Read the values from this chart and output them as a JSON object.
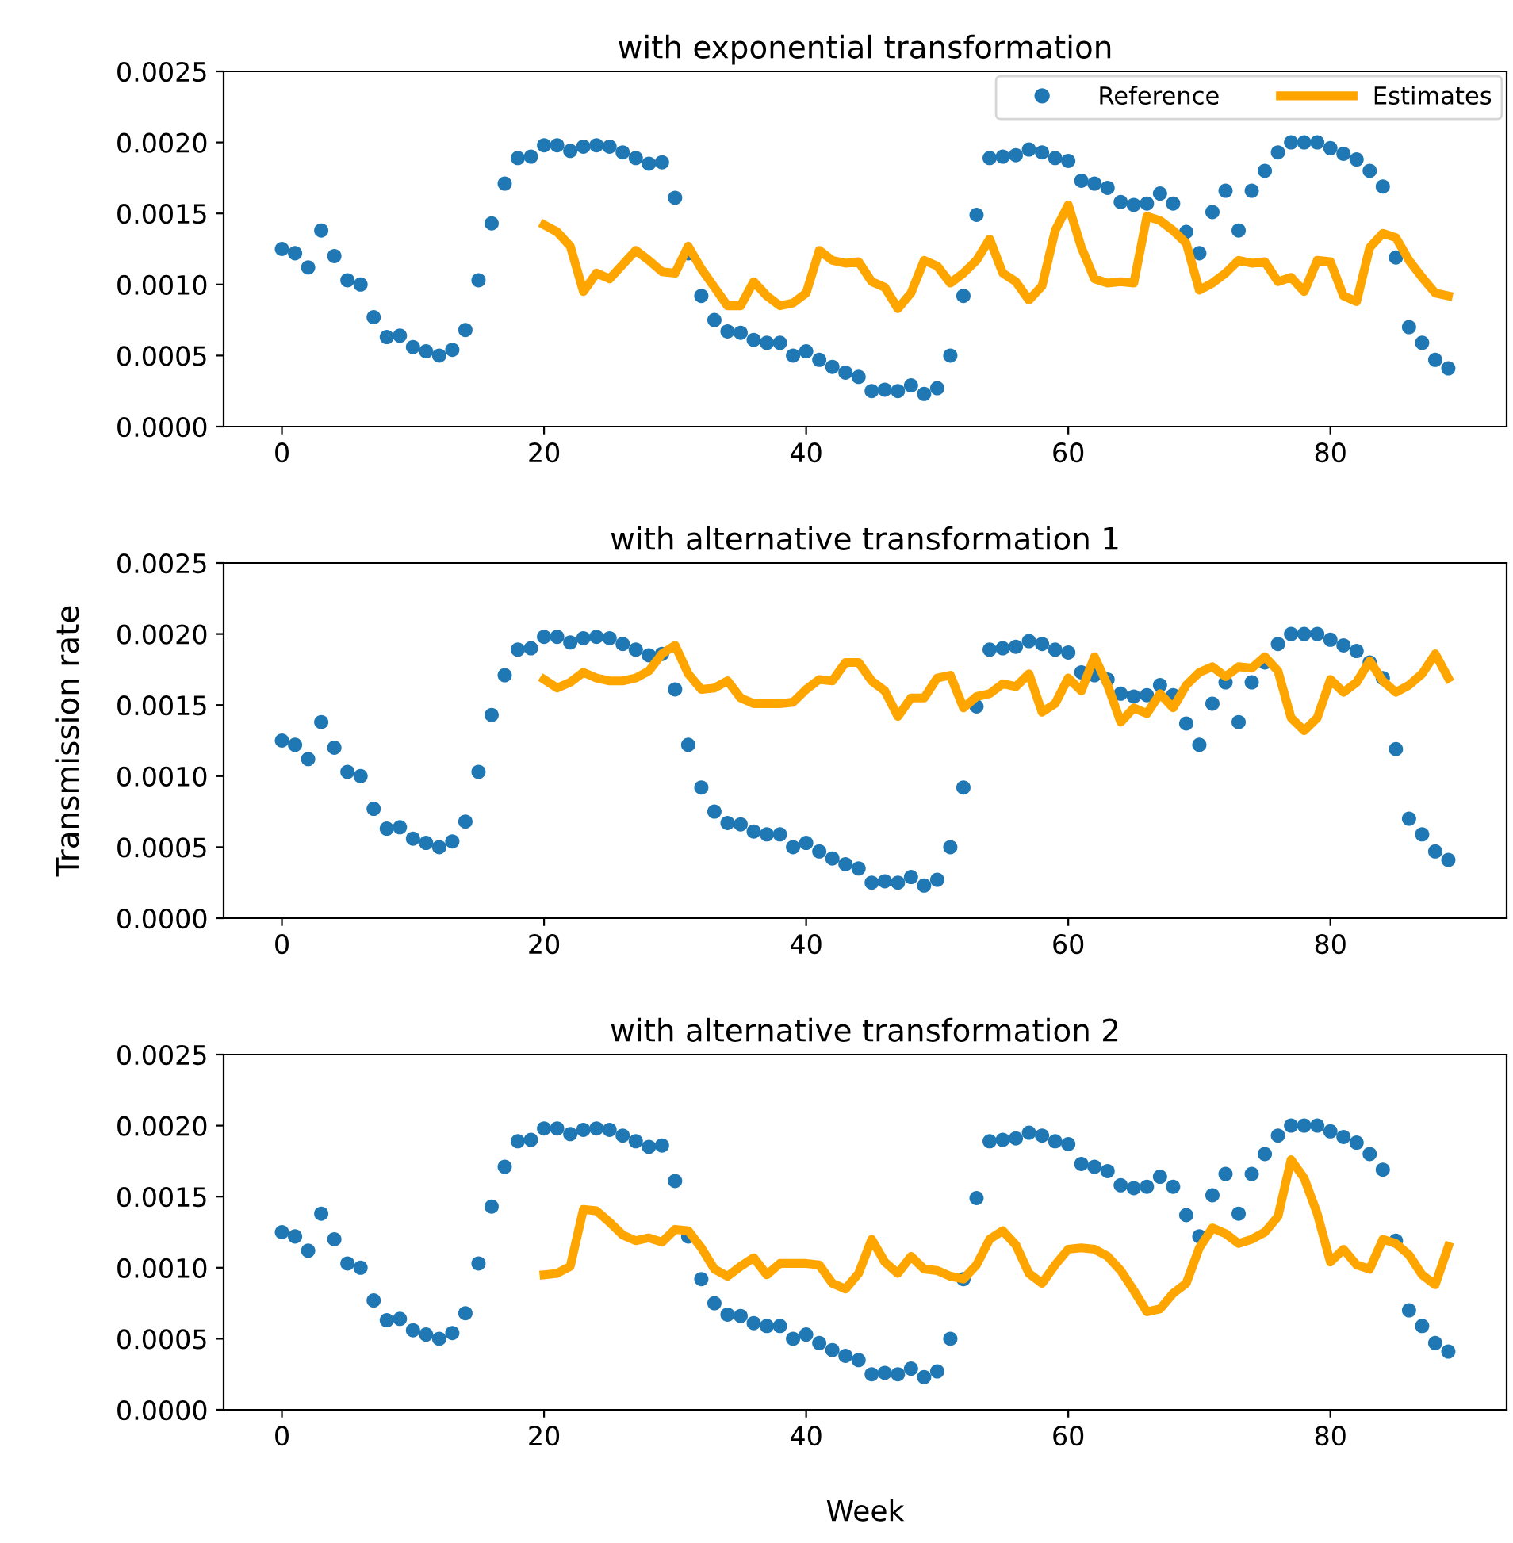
{
  "chart_data": [
    {
      "type": "scatter",
      "title": "with exponential transformation",
      "legend": "top right",
      "xlim": [
        -4.45,
        93.45
      ],
      "xticks": [
        0,
        20,
        40,
        60,
        80
      ],
      "ylim": [
        0,
        0.0025
      ],
      "yticks": [
        {
          "value": 0,
          "label": "0.0000"
        },
        {
          "value": 0.0005,
          "label": "0.0005"
        },
        {
          "value": 0.001,
          "label": "0.0010"
        },
        {
          "value": 0.0015,
          "label": "0.0015"
        },
        {
          "value": 0.002,
          "label": "0.0020"
        },
        {
          "value": 0.0025,
          "label": "0.0025"
        }
      ],
      "series": [
        {
          "name": "Reference",
          "marker": "circle",
          "color": "#1f77b4",
          "x": [
            0,
            1,
            2,
            3,
            4,
            5,
            6,
            7,
            8,
            9,
            10,
            11,
            12,
            13,
            14,
            15,
            16,
            17,
            18,
            19,
            20,
            21,
            22,
            23,
            24,
            25,
            26,
            27,
            28,
            29,
            30,
            31,
            32,
            33,
            34,
            35,
            36,
            37,
            38,
            39,
            40,
            41,
            42,
            43,
            44,
            45,
            46,
            47,
            48,
            49,
            50,
            51,
            52,
            53,
            54,
            55,
            56,
            57,
            58,
            59,
            60,
            61,
            62,
            63,
            64,
            65,
            66,
            67,
            68,
            69,
            70,
            71,
            72,
            73,
            74,
            75,
            76,
            77,
            78,
            79,
            80,
            81,
            82,
            83,
            84,
            85,
            86,
            87,
            88,
            89
          ],
          "values": [
            0.00125,
            0.00122,
            0.00112,
            0.00138,
            0.0012,
            0.00103,
            0.001,
            0.00077,
            0.00063,
            0.00064,
            0.00056,
            0.00053,
            0.0005,
            0.00054,
            0.00068,
            0.00103,
            0.00143,
            0.00171,
            0.00189,
            0.0019,
            0.00198,
            0.00198,
            0.00194,
            0.00197,
            0.00198,
            0.00197,
            0.00193,
            0.00189,
            0.00185,
            0.00186,
            0.00161,
            0.00122,
            0.00092,
            0.00075,
            0.00067,
            0.00066,
            0.00061,
            0.00059,
            0.00059,
            0.0005,
            0.00053,
            0.00047,
            0.00042,
            0.00038,
            0.00035,
            0.00025,
            0.00026,
            0.00025,
            0.00029,
            0.00023,
            0.00027,
            0.0005,
            0.00092,
            0.00149,
            0.00189,
            0.0019,
            0.00191,
            0.00195,
            0.00193,
            0.00189,
            0.00187,
            0.00173,
            0.00171,
            0.00168,
            0.00158,
            0.00156,
            0.00157,
            0.00164,
            0.00157,
            0.00137,
            0.00122,
            0.00151,
            0.00166,
            0.00138,
            0.00166,
            0.0018,
            0.00193,
            0.002,
            0.002,
            0.002,
            0.00196,
            0.00192,
            0.00188,
            0.0018,
            0.00169,
            0.00119,
            0.0007,
            0.00059,
            0.00047,
            0.00041
          ]
        },
        {
          "name": "Estimates",
          "type": "line",
          "color": "#ffa500",
          "x": [
            20,
            21,
            22,
            23,
            24,
            25,
            26,
            27,
            28,
            29,
            30,
            31,
            32,
            33,
            34,
            35,
            36,
            37,
            38,
            39,
            40,
            41,
            42,
            43,
            44,
            45,
            46,
            47,
            48,
            49,
            50,
            51,
            52,
            53,
            54,
            55,
            56,
            57,
            58,
            59,
            60,
            61,
            62,
            63,
            64,
            65,
            66,
            67,
            68,
            69,
            70,
            71,
            72,
            73,
            74,
            75,
            76,
            77,
            78,
            79,
            80,
            81,
            82,
            83,
            84,
            85,
            86,
            87,
            88,
            89
          ],
          "values": [
            0.00142,
            0.00137,
            0.00127,
            0.00095,
            0.00108,
            0.00104,
            0.00114,
            0.00124,
            0.00117,
            0.00109,
            0.00108,
            0.00127,
            0.00111,
            0.00098,
            0.00085,
            0.00085,
            0.00102,
            0.00092,
            0.00085,
            0.00087,
            0.00094,
            0.00124,
            0.00117,
            0.00115,
            0.00116,
            0.00102,
            0.00098,
            0.00083,
            0.00094,
            0.00117,
            0.00113,
            0.00101,
            0.00108,
            0.00117,
            0.00132,
            0.00108,
            0.00102,
            0.00089,
            0.00099,
            0.00138,
            0.00156,
            0.00126,
            0.00104,
            0.00101,
            0.00102,
            0.00101,
            0.00148,
            0.00145,
            0.00138,
            0.00129,
            0.00096,
            0.00101,
            0.00108,
            0.00117,
            0.00115,
            0.00116,
            0.00102,
            0.00105,
            0.00095,
            0.00117,
            0.00116,
            0.00092,
            0.00088,
            0.00126,
            0.00136,
            0.00133,
            0.00117,
            0.00105,
            0.00094,
            0.00092
          ]
        }
      ]
    },
    {
      "type": "scatter",
      "title": "with alternative transformation 1",
      "ylabel": "Transmission rate",
      "xlim": [
        -4.45,
        93.45
      ],
      "xticks": [
        0,
        20,
        40,
        60,
        80
      ],
      "ylim": [
        0,
        0.0025
      ],
      "yticks": [
        {
          "value": 0,
          "label": "0.0000"
        },
        {
          "value": 0.0005,
          "label": "0.0005"
        },
        {
          "value": 0.001,
          "label": "0.0010"
        },
        {
          "value": 0.0015,
          "label": "0.0015"
        },
        {
          "value": 0.002,
          "label": "0.0020"
        },
        {
          "value": 0.0025,
          "label": "0.0025"
        }
      ],
      "series": [
        {
          "marker": "circle",
          "color": "#1f77b4",
          "x": [
            0,
            1,
            2,
            3,
            4,
            5,
            6,
            7,
            8,
            9,
            10,
            11,
            12,
            13,
            14,
            15,
            16,
            17,
            18,
            19,
            20,
            21,
            22,
            23,
            24,
            25,
            26,
            27,
            28,
            29,
            30,
            31,
            32,
            33,
            34,
            35,
            36,
            37,
            38,
            39,
            40,
            41,
            42,
            43,
            44,
            45,
            46,
            47,
            48,
            49,
            50,
            51,
            52,
            53,
            54,
            55,
            56,
            57,
            58,
            59,
            60,
            61,
            62,
            63,
            64,
            65,
            66,
            67,
            68,
            69,
            70,
            71,
            72,
            73,
            74,
            75,
            76,
            77,
            78,
            79,
            80,
            81,
            82,
            83,
            84,
            85,
            86,
            87,
            88,
            89
          ],
          "values": [
            0.00125,
            0.00122,
            0.00112,
            0.00138,
            0.0012,
            0.00103,
            0.001,
            0.00077,
            0.00063,
            0.00064,
            0.00056,
            0.00053,
            0.0005,
            0.00054,
            0.00068,
            0.00103,
            0.00143,
            0.00171,
            0.00189,
            0.0019,
            0.00198,
            0.00198,
            0.00194,
            0.00197,
            0.00198,
            0.00197,
            0.00193,
            0.00189,
            0.00185,
            0.00186,
            0.00161,
            0.00122,
            0.00092,
            0.00075,
            0.00067,
            0.00066,
            0.00061,
            0.00059,
            0.00059,
            0.0005,
            0.00053,
            0.00047,
            0.00042,
            0.00038,
            0.00035,
            0.00025,
            0.00026,
            0.00025,
            0.00029,
            0.00023,
            0.00027,
            0.0005,
            0.00092,
            0.00149,
            0.00189,
            0.0019,
            0.00191,
            0.00195,
            0.00193,
            0.00189,
            0.00187,
            0.00173,
            0.00171,
            0.00168,
            0.00158,
            0.00156,
            0.00157,
            0.00164,
            0.00157,
            0.00137,
            0.00122,
            0.00151,
            0.00166,
            0.00138,
            0.00166,
            0.0018,
            0.00193,
            0.002,
            0.002,
            0.002,
            0.00196,
            0.00192,
            0.00188,
            0.0018,
            0.00169,
            0.00119,
            0.0007,
            0.00059,
            0.00047,
            0.00041
          ]
        },
        {
          "type": "line",
          "color": "#ffa500",
          "x": [
            20,
            21,
            22,
            23,
            24,
            25,
            26,
            27,
            28,
            29,
            30,
            31,
            32,
            33,
            34,
            35,
            36,
            37,
            38,
            39,
            40,
            41,
            42,
            43,
            44,
            45,
            46,
            47,
            48,
            49,
            50,
            51,
            52,
            53,
            54,
            55,
            56,
            57,
            58,
            59,
            60,
            61,
            62,
            63,
            64,
            65,
            66,
            67,
            68,
            69,
            70,
            71,
            72,
            73,
            74,
            75,
            76,
            77,
            78,
            79,
            80,
            81,
            82,
            83,
            84,
            85,
            86,
            87,
            88,
            89
          ],
          "values": [
            0.00168,
            0.00162,
            0.00166,
            0.00173,
            0.00169,
            0.00167,
            0.00167,
            0.00169,
            0.00174,
            0.00186,
            0.00192,
            0.00172,
            0.00161,
            0.00162,
            0.00167,
            0.00155,
            0.00151,
            0.00151,
            0.00151,
            0.00152,
            0.00161,
            0.00168,
            0.00167,
            0.0018,
            0.0018,
            0.00167,
            0.0016,
            0.00142,
            0.00155,
            0.00155,
            0.00169,
            0.00171,
            0.00148,
            0.00156,
            0.00158,
            0.00165,
            0.00163,
            0.00172,
            0.00145,
            0.00151,
            0.00169,
            0.0016,
            0.00184,
            0.00164,
            0.00138,
            0.00148,
            0.00144,
            0.00158,
            0.00148,
            0.00164,
            0.00173,
            0.00177,
            0.0017,
            0.00177,
            0.00176,
            0.00184,
            0.00174,
            0.00141,
            0.00132,
            0.00141,
            0.00168,
            0.00159,
            0.00166,
            0.00181,
            0.00167,
            0.00159,
            0.00164,
            0.00172,
            0.00186,
            0.00169
          ]
        }
      ]
    },
    {
      "type": "scatter",
      "title": "with alternative transformation 2",
      "xlabel": "Week",
      "xlim": [
        -4.45,
        93.45
      ],
      "xticks": [
        0,
        20,
        40,
        60,
        80
      ],
      "ylim": [
        0,
        0.0025
      ],
      "yticks": [
        {
          "value": 0,
          "label": "0.0000"
        },
        {
          "value": 0.0005,
          "label": "0.0005"
        },
        {
          "value": 0.001,
          "label": "0.0010"
        },
        {
          "value": 0.0015,
          "label": "0.0015"
        },
        {
          "value": 0.002,
          "label": "0.0020"
        },
        {
          "value": 0.0025,
          "label": "0.0025"
        }
      ],
      "series": [
        {
          "marker": "circle",
          "color": "#1f77b4",
          "x": [
            0,
            1,
            2,
            3,
            4,
            5,
            6,
            7,
            8,
            9,
            10,
            11,
            12,
            13,
            14,
            15,
            16,
            17,
            18,
            19,
            20,
            21,
            22,
            23,
            24,
            25,
            26,
            27,
            28,
            29,
            30,
            31,
            32,
            33,
            34,
            35,
            36,
            37,
            38,
            39,
            40,
            41,
            42,
            43,
            44,
            45,
            46,
            47,
            48,
            49,
            50,
            51,
            52,
            53,
            54,
            55,
            56,
            57,
            58,
            59,
            60,
            61,
            62,
            63,
            64,
            65,
            66,
            67,
            68,
            69,
            70,
            71,
            72,
            73,
            74,
            75,
            76,
            77,
            78,
            79,
            80,
            81,
            82,
            83,
            84,
            85,
            86,
            87,
            88,
            89
          ],
          "values": [
            0.00125,
            0.00122,
            0.00112,
            0.00138,
            0.0012,
            0.00103,
            0.001,
            0.00077,
            0.00063,
            0.00064,
            0.00056,
            0.00053,
            0.0005,
            0.00054,
            0.00068,
            0.00103,
            0.00143,
            0.00171,
            0.00189,
            0.0019,
            0.00198,
            0.00198,
            0.00194,
            0.00197,
            0.00198,
            0.00197,
            0.00193,
            0.00189,
            0.00185,
            0.00186,
            0.00161,
            0.00122,
            0.00092,
            0.00075,
            0.00067,
            0.00066,
            0.00061,
            0.00059,
            0.00059,
            0.0005,
            0.00053,
            0.00047,
            0.00042,
            0.00038,
            0.00035,
            0.00025,
            0.00026,
            0.00025,
            0.00029,
            0.00023,
            0.00027,
            0.0005,
            0.00092,
            0.00149,
            0.00189,
            0.0019,
            0.00191,
            0.00195,
            0.00193,
            0.00189,
            0.00187,
            0.00173,
            0.00171,
            0.00168,
            0.00158,
            0.00156,
            0.00157,
            0.00164,
            0.00157,
            0.00137,
            0.00122,
            0.00151,
            0.00166,
            0.00138,
            0.00166,
            0.0018,
            0.00193,
            0.002,
            0.002,
            0.002,
            0.00196,
            0.00192,
            0.00188,
            0.0018,
            0.00169,
            0.00119,
            0.0007,
            0.00059,
            0.00047,
            0.00041
          ]
        },
        {
          "type": "line",
          "color": "#ffa500",
          "x": [
            20,
            21,
            22,
            23,
            24,
            25,
            26,
            27,
            28,
            29,
            30,
            31,
            32,
            33,
            34,
            35,
            36,
            37,
            38,
            39,
            40,
            41,
            42,
            43,
            44,
            45,
            46,
            47,
            48,
            49,
            50,
            51,
            52,
            53,
            54,
            55,
            56,
            57,
            58,
            59,
            60,
            61,
            62,
            63,
            64,
            65,
            66,
            67,
            68,
            69,
            70,
            71,
            72,
            73,
            74,
            75,
            76,
            77,
            78,
            79,
            80,
            81,
            82,
            83,
            84,
            85,
            86,
            87,
            88,
            89
          ],
          "values": [
            0.00095,
            0.00096,
            0.00101,
            0.00141,
            0.0014,
            0.00132,
            0.00123,
            0.00119,
            0.00121,
            0.00118,
            0.00127,
            0.00126,
            0.00114,
            0.00099,
            0.00094,
            0.00101,
            0.00107,
            0.00095,
            0.00103,
            0.00103,
            0.00103,
            0.00102,
            0.00089,
            0.00085,
            0.00096,
            0.0012,
            0.00104,
            0.00096,
            0.00108,
            0.00099,
            0.00098,
            0.00094,
            0.00092,
            0.00102,
            0.0012,
            0.00126,
            0.00116,
            0.00096,
            0.00089,
            0.00102,
            0.00113,
            0.00114,
            0.00113,
            0.00108,
            0.00098,
            0.00084,
            0.00069,
            0.00071,
            0.00082,
            0.00089,
            0.00114,
            0.00128,
            0.00124,
            0.00117,
            0.0012,
            0.00125,
            0.00136,
            0.00176,
            0.00163,
            0.00138,
            0.00104,
            0.00113,
            0.00102,
            0.00099,
            0.0012,
            0.00117,
            0.00109,
            0.00095,
            0.00088,
            0.00115
          ]
        }
      ]
    }
  ]
}
